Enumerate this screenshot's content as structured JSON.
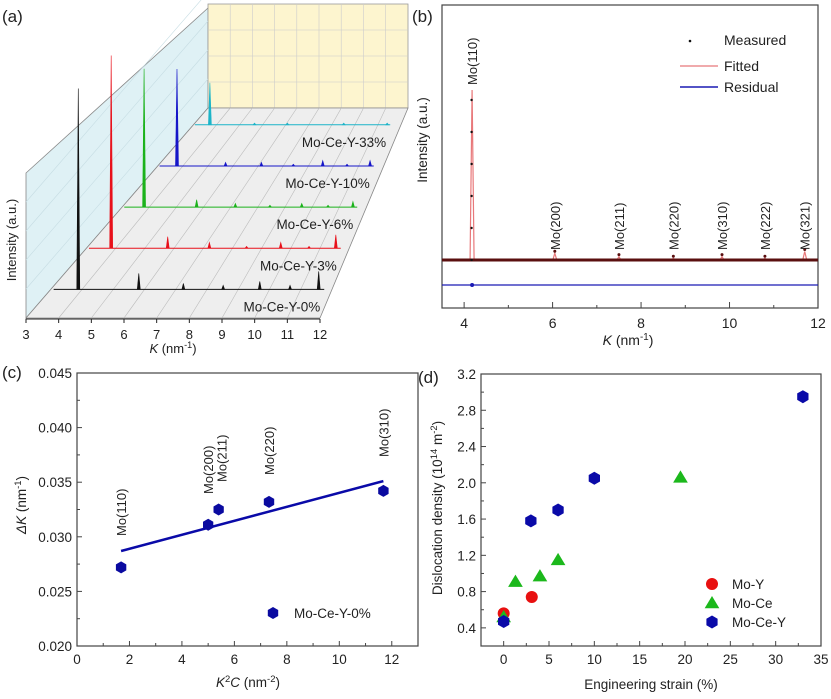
{
  "chart_data": [
    {
      "panel": "(a)",
      "type": "line",
      "subtype": "3d-waterfall",
      "xlabel": "K (nm",
      "xlabel_sup": "-1",
      "xlabel_close": ")",
      "ylabel": "Intensity (a.u.)",
      "xlim": [
        3,
        12
      ],
      "xticks": [
        "3",
        "4",
        "5",
        "6",
        "7",
        "8",
        "9",
        "10",
        "11",
        "12"
      ],
      "peak_positions": [
        4.15,
        6.05,
        7.45,
        8.7,
        9.85,
        10.8,
        11.7
      ],
      "series": [
        {
          "name": "Mo-Ce-Y-0%",
          "color": "#111111",
          "relative_heights": [
            1.0,
            0.08,
            0.03,
            0.02,
            0.04,
            0.02,
            0.09
          ]
        },
        {
          "name": "Mo-Ce-Y-3%",
          "color": "#e8101a",
          "relative_heights": [
            1.0,
            0.06,
            0.03,
            0.01,
            0.03,
            0.01,
            0.07
          ]
        },
        {
          "name": "Mo-Ce-Y-6%",
          "color": "#1bb21b",
          "relative_heights": [
            0.75,
            0.04,
            0.02,
            0.01,
            0.02,
            0.01,
            0.03
          ]
        },
        {
          "name": "Mo-Ce-Y-10%",
          "color": "#1515c8",
          "relative_heights": [
            0.55,
            0.02,
            0.02,
            0.01,
            0.03,
            0.01,
            0.03
          ]
        },
        {
          "name": "Mo-Ce-Y-33%",
          "color": "#1cb4c8",
          "relative_heights": [
            0.25,
            0.01,
            0.01,
            0.0,
            0.01,
            0.0,
            0.01
          ]
        }
      ],
      "colors": {
        "back_wall": "#fdf5cf",
        "side_wall": "#dff1f5",
        "floor": "#eeeeee",
        "grid": "#aaaaaa"
      }
    },
    {
      "panel": "(b)",
      "type": "line",
      "xlabel": "K (nm",
      "xlabel_sup": "-1",
      "xlabel_close": ")",
      "ylabel": "Intensity (a.u.)",
      "xlim": [
        3.5,
        12
      ],
      "xticks": [
        "4",
        "6",
        "8",
        "10",
        "12"
      ],
      "legend": [
        {
          "label": "Measured",
          "color": "#111111",
          "style": "marker"
        },
        {
          "label": "Fitted",
          "color": "#e8787a",
          "style": "line"
        },
        {
          "label": "Residual",
          "color": "#1a1ab4",
          "style": "line"
        }
      ],
      "legend_position": "top-right",
      "peaks": [
        {
          "label": "Mo(110)",
          "k": 4.18,
          "relative_height": 1.0
        },
        {
          "label": "Mo(200)",
          "k": 6.05,
          "relative_height": 0.04
        },
        {
          "label": "Mo(211)",
          "k": 7.5,
          "relative_height": 0.02
        },
        {
          "label": "Mo(220)",
          "k": 8.73,
          "relative_height": 0.01
        },
        {
          "label": "Mo(310)",
          "k": 9.83,
          "relative_height": 0.02
        },
        {
          "label": "Mo(222)",
          "k": 10.8,
          "relative_height": 0.01
        },
        {
          "label": "Mo(321)",
          "k": 11.7,
          "relative_height": 0.05
        }
      ]
    },
    {
      "panel": "(c)",
      "type": "scatter",
      "xlabel": "K",
      "xlabel_sup": "2",
      "xlabel_rest": "C (nm",
      "xlabel_sup2": "-2",
      "xlabel_close": ")",
      "ylabel": "ΔK (nm",
      "ylabel_sup": "-1",
      "ylabel_close": ")",
      "xlim": [
        0,
        13
      ],
      "ylim": [
        0.02,
        0.045
      ],
      "xticks": [
        "0",
        "2",
        "4",
        "6",
        "8",
        "10",
        "12"
      ],
      "yticks": [
        "0.020",
        "0.025",
        "0.030",
        "0.035",
        "0.040",
        "0.045"
      ],
      "points": [
        {
          "label": "Mo(110)",
          "x": 1.68,
          "y": 0.0272
        },
        {
          "label": "Mo(200)",
          "x": 5.0,
          "y": 0.0311
        },
        {
          "label": "Mo(211)",
          "x": 5.4,
          "y": 0.0325
        },
        {
          "label": "Mo(220)",
          "x": 7.32,
          "y": 0.0332
        },
        {
          "label": "Mo(310)",
          "x": 11.68,
          "y": 0.0342
        }
      ],
      "fit_line": {
        "x": [
          1.68,
          11.68
        ],
        "y": [
          0.0287,
          0.0351
        ]
      },
      "legend": [
        {
          "label": "Mo-Ce-Y-0%",
          "color": "#0a0aa0",
          "marker": "hexagon"
        }
      ],
      "legend_position": "bottom-right"
    },
    {
      "panel": "(d)",
      "type": "scatter",
      "xlabel": "Engineering strain (%)",
      "ylabel": "Dislocation density (10",
      "ylabel_sup": "14",
      "ylabel_mid": " m",
      "ylabel_sup2": "-2",
      "ylabel_close": ")",
      "xlim": [
        -2.5,
        35
      ],
      "ylim": [
        0.2,
        3.2
      ],
      "xticks": [
        "0",
        "5",
        "10",
        "15",
        "20",
        "25",
        "30",
        "35"
      ],
      "yticks": [
        "0.4",
        "0.8",
        "1.2",
        "1.6",
        "2.0",
        "2.4",
        "2.8",
        "3.2"
      ],
      "series": [
        {
          "name": "Mo-Y",
          "color": "#e81010",
          "marker": "circle",
          "x": [
            0,
            3.1
          ],
          "y": [
            0.56,
            0.74
          ]
        },
        {
          "name": "Mo-Ce",
          "color": "#1cb81c",
          "marker": "triangle",
          "x": [
            0,
            1.3,
            4,
            6,
            19.5
          ],
          "y": [
            0.52,
            0.91,
            0.97,
            1.15,
            2.06
          ]
        },
        {
          "name": "Mo-Ce-Y",
          "color": "#0a0aa8",
          "marker": "hexagon",
          "x": [
            0,
            3,
            6,
            10,
            33
          ],
          "y": [
            0.47,
            1.58,
            1.7,
            2.05,
            2.95
          ]
        }
      ],
      "legend_position": "bottom-right"
    }
  ]
}
